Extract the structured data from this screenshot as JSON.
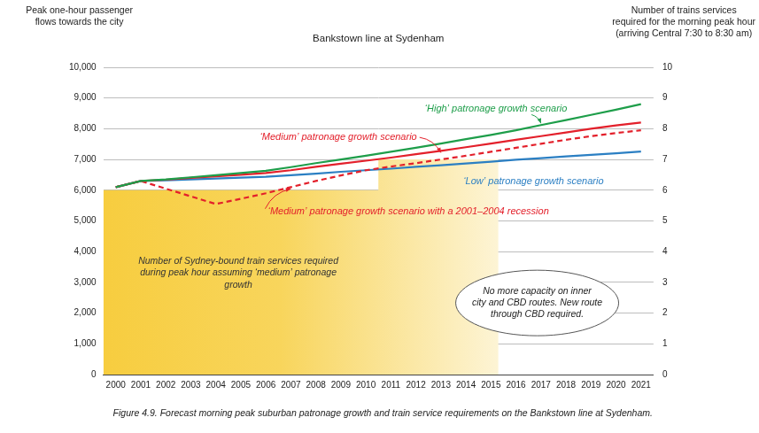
{
  "chart_data": {
    "type": "line",
    "title": "Bankstown line at Sydenham",
    "y_label": [
      "Peak one-hour passenger",
      "flows towards the city"
    ],
    "y2_label": [
      "Number of trains services",
      "required for the morning peak hour",
      "(arriving Central 7:30 to 8:30 am)"
    ],
    "caption": "Figure 4.9. Forecast morning peak suburban patronage growth and train service requirements on the Bankstown line at Sydenham.",
    "x": [
      2000,
      2001,
      2002,
      2003,
      2004,
      2005,
      2006,
      2007,
      2008,
      2009,
      2010,
      2011,
      2012,
      2013,
      2014,
      2015,
      2016,
      2017,
      2018,
      2019,
      2020,
      2021
    ],
    "xlim": [
      1999.5,
      2021.5
    ],
    "xticks": [
      2000,
      2001,
      2002,
      2003,
      2004,
      2005,
      2006,
      2007,
      2008,
      2009,
      2010,
      2011,
      2012,
      2013,
      2014,
      2015,
      2016,
      2017,
      2018,
      2019,
      2020,
      2021
    ],
    "ylim": [
      0,
      10000
    ],
    "yticks": [
      0,
      {
        "value": 1000,
        "label": "1,000"
      },
      {
        "value": 2000,
        "label": "2,000"
      },
      {
        "value": 3000,
        "label": "3,000"
      },
      {
        "value": 4000,
        "label": "4,000"
      },
      {
        "value": 5000,
        "label": "5,000"
      },
      {
        "value": 6000,
        "label": "6,000"
      },
      {
        "value": 7000,
        "label": "7,000"
      },
      {
        "value": 8000,
        "label": "8,000"
      },
      {
        "value": 9000,
        "label": "9,000"
      },
      {
        "value": 10000,
        "label": "10,000"
      }
    ],
    "y2lim": [
      0,
      10
    ],
    "y2ticks": [
      0,
      1,
      2,
      3,
      4,
      5,
      6,
      7,
      8,
      9,
      10
    ],
    "grid": true,
    "legend": false,
    "series": [
      {
        "name": "Number of Sydney-bound train services required during peak hour assuming ‘medium’ patronage growth",
        "type": "area",
        "axis": "y2",
        "line_style": "stepped",
        "color": "#f7cd3f",
        "x": [
          1999.5,
          2010.5,
          2015.3
        ],
        "values": [
          6,
          7,
          7
        ]
      },
      {
        "name": "‘High’ patronage growth scenario",
        "type": "line",
        "line_style": "solid",
        "color": "#1e9e4a",
        "values": [
          6100,
          6300,
          6350,
          6420,
          6490,
          6560,
          6630,
          6750,
          6880,
          7000,
          7120,
          7250,
          7380,
          7520,
          7660,
          7800,
          7950,
          8120,
          8280,
          8450,
          8620,
          8800
        ]
      },
      {
        "name": "‘Medium’ patronage growth scenario",
        "type": "line",
        "line_style": "solid",
        "color": "#e3202b",
        "values": [
          6100,
          6300,
          6340,
          6400,
          6450,
          6500,
          6560,
          6650,
          6760,
          6860,
          6960,
          7060,
          7170,
          7280,
          7400,
          7520,
          7640,
          7760,
          7880,
          8000,
          8110,
          8200
        ]
      },
      {
        "name": "‘Medium’ patronage growth scenario with a 2001–2004 recession",
        "type": "line",
        "line_style": "dashed",
        "color": "#e3202b",
        "values": [
          6100,
          6300,
          6050,
          5800,
          5550,
          5720,
          5900,
          6100,
          6300,
          6480,
          6650,
          6770,
          6880,
          7000,
          7120,
          7250,
          7380,
          7510,
          7640,
          7760,
          7860,
          7950
        ]
      },
      {
        "name": "‘Low’ patronage growth scenario",
        "type": "line",
        "line_style": "solid",
        "color": "#2b7fc3",
        "values": [
          6100,
          6300,
          6320,
          6350,
          6380,
          6410,
          6440,
          6490,
          6540,
          6600,
          6650,
          6700,
          6760,
          6810,
          6870,
          6930,
          6990,
          7040,
          7100,
          7150,
          7200,
          7260
        ]
      }
    ],
    "annotations": [
      {
        "text": [
          "No more capacity on inner",
          "city and CBD routes. New route",
          "through CBD required."
        ]
      }
    ]
  }
}
